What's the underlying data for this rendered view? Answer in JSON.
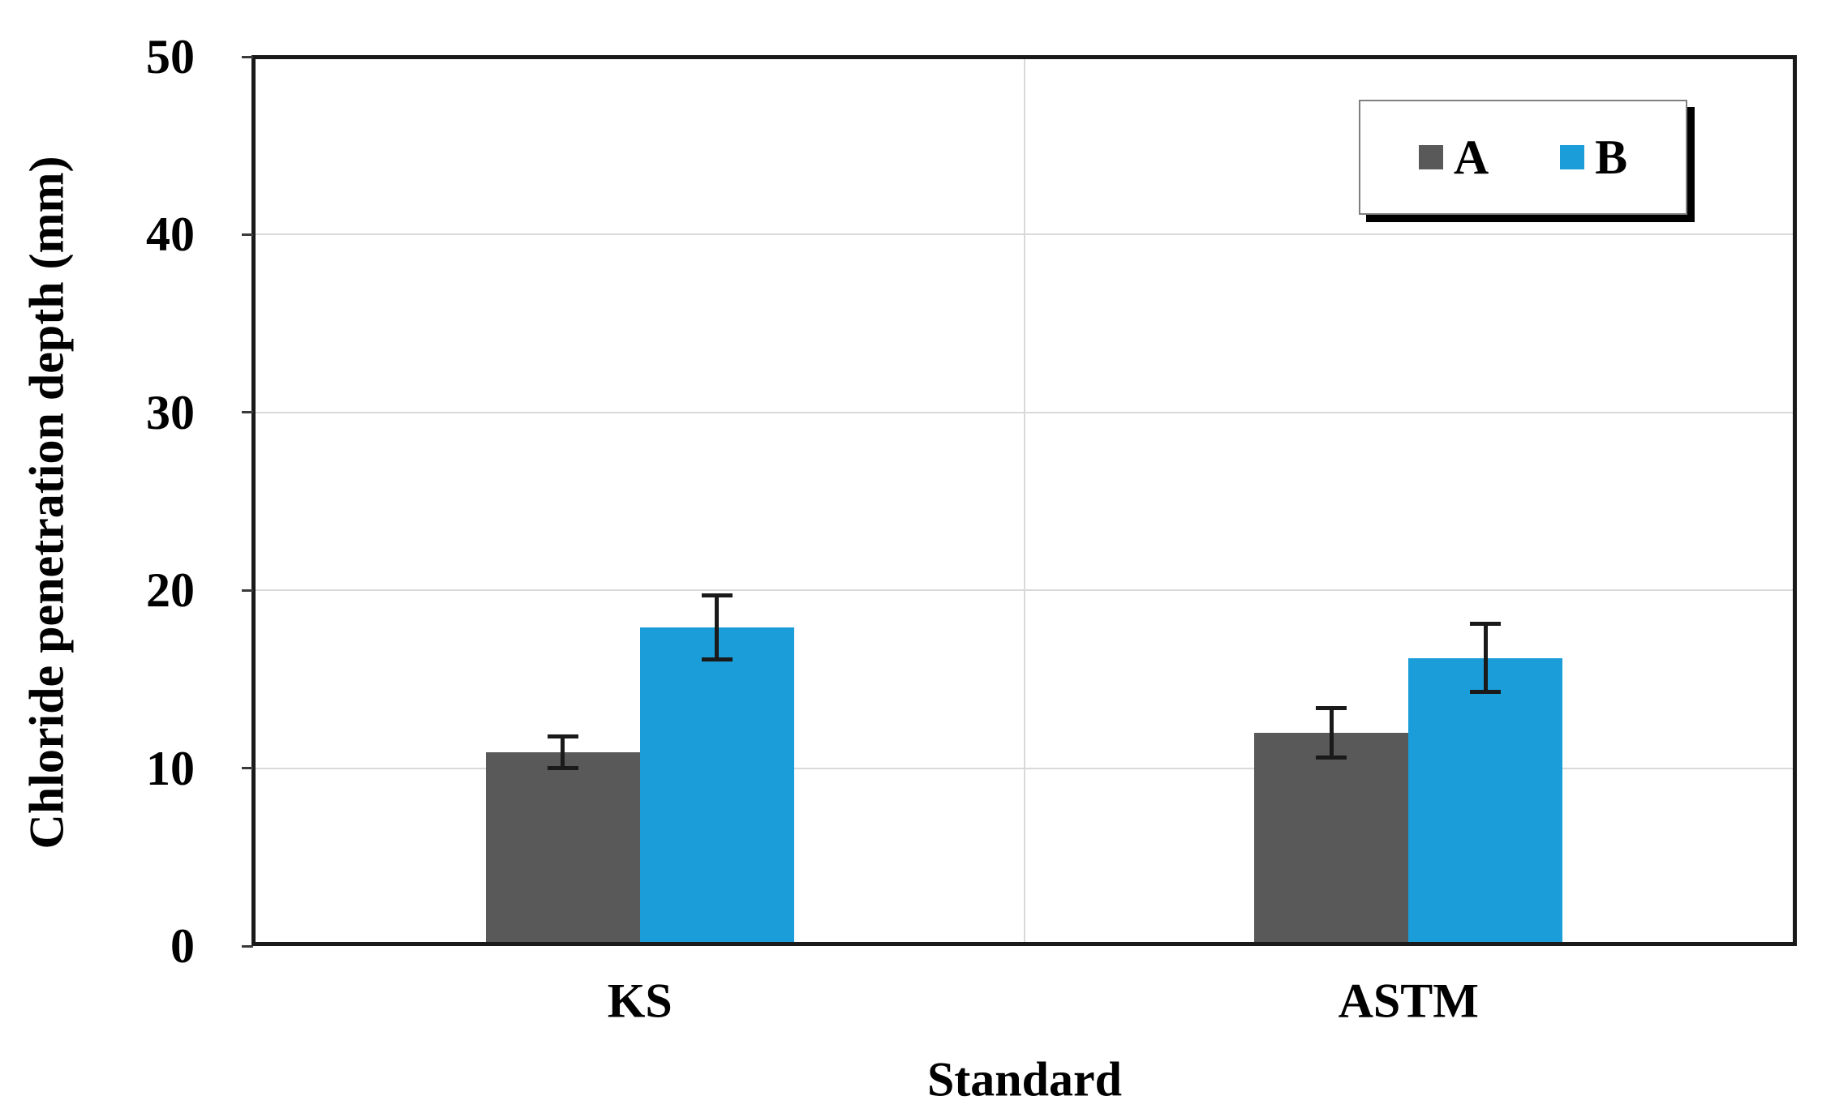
{
  "chart_data": {
    "type": "bar",
    "title": "",
    "xlabel": "Standard",
    "ylabel": "Chloride penetration depth (mm)",
    "categories": [
      "KS",
      "ASTM"
    ],
    "series": [
      {
        "name": "A",
        "color": "#595959",
        "values": [
          10.9,
          12.0
        ],
        "errors": [
          0.9,
          1.4
        ]
      },
      {
        "name": "B",
        "color": "#1B9DD9",
        "values": [
          17.9,
          16.2
        ],
        "errors": [
          1.8,
          1.9
        ]
      }
    ],
    "ylim": [
      0,
      50
    ],
    "yticks": [
      0,
      10,
      20,
      30,
      40,
      50
    ],
    "grid": true,
    "legend": {
      "entries": [
        "A",
        "B"
      ],
      "position": "top-right"
    }
  },
  "colors": {
    "gridline": "#D9D9D9",
    "axis_frame": "#1A1A1A",
    "error_bar": "#1A1A1A",
    "background": "#FFFFFF"
  }
}
